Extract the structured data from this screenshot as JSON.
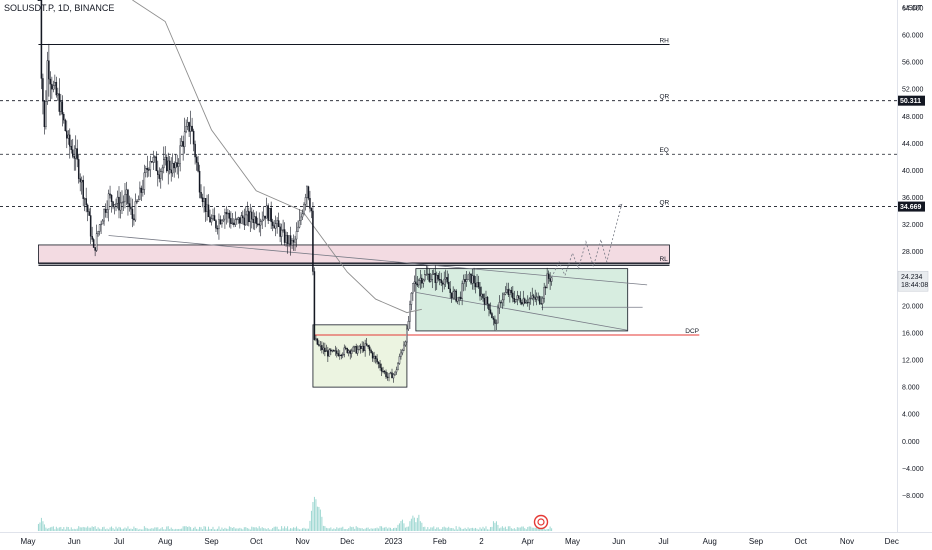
{
  "header": {
    "symbol_text": "SOLUSDT.P, 1D, BINANCE"
  },
  "colors": {
    "background": "#ffffff",
    "candle_up": "#131722",
    "candle_down": "#131722",
    "level_line": "#131722",
    "resistance_zone": "#f3dbe2",
    "resistance_zone_border": "#131722",
    "dcp_line": "#e53935",
    "accum_box_1": "#ecf4e1",
    "accum_box_2": "#d7ede0",
    "accum_box_border": "#43a047",
    "ma_line": "#8e8e8e",
    "volume": "#26a69a",
    "label_bg": "#131722"
  },
  "chart_data": {
    "type": "candlestick",
    "symbol": "SOLUSDT.P",
    "interval": "1D",
    "exchange": "BINANCE",
    "y_unit": "USDT",
    "ylim": [
      -9.5,
      68.0
    ],
    "y_ticks": [
      "64.000",
      "60.000",
      "56.000",
      "52.000",
      "48.000",
      "44.000",
      "40.000",
      "36.000",
      "32.000",
      "28.000",
      "24.000",
      "20.000",
      "16.000",
      "12.000",
      "8.000",
      "4.000",
      "0.000",
      "−4.000",
      "−8.000"
    ],
    "x_ticks": [
      "May",
      "Jun",
      "Jul",
      "Aug",
      "Sep",
      "Oct",
      "Nov",
      "Dec",
      "2023",
      "Feb",
      "2",
      "Apr",
      "May",
      "Jun",
      "Jul",
      "Aug",
      "Sep",
      "Oct",
      "Nov",
      "Dec"
    ],
    "x_tick_dates": [
      "2022-05-01",
      "2022-06-01",
      "2022-07-01",
      "2022-08-01",
      "2022-09-01",
      "2022-10-01",
      "2022-11-01",
      "2022-12-01",
      "2023-01-01",
      "2023-02-01",
      "2023-03-01",
      "2023-04-01",
      "2023-05-01",
      "2023-06-01",
      "2023-07-01",
      "2023-08-01",
      "2023-09-01",
      "2023-10-01",
      "2023-11-01",
      "2023-12-01"
    ],
    "x_range": [
      "2022-05-01",
      "2023-12-20"
    ],
    "price_path": [
      [
        "2022-05-08",
        82
      ],
      [
        "2022-05-10",
        55
      ],
      [
        "2022-05-12",
        46
      ],
      [
        "2022-05-14",
        56
      ],
      [
        "2022-05-18",
        52
      ],
      [
        "2022-05-22",
        50
      ],
      [
        "2022-05-28",
        44
      ],
      [
        "2022-06-02",
        42
      ],
      [
        "2022-06-06",
        38
      ],
      [
        "2022-06-10",
        34
      ],
      [
        "2022-06-14",
        28
      ],
      [
        "2022-06-18",
        32
      ],
      [
        "2022-06-24",
        36
      ],
      [
        "2022-07-01",
        35
      ],
      [
        "2022-07-06",
        36
      ],
      [
        "2022-07-10",
        33
      ],
      [
        "2022-07-16",
        37
      ],
      [
        "2022-07-22",
        42
      ],
      [
        "2022-07-28",
        40
      ],
      [
        "2022-08-02",
        41
      ],
      [
        "2022-08-08",
        40
      ],
      [
        "2022-08-12",
        44
      ],
      [
        "2022-08-18",
        47
      ],
      [
        "2022-08-24",
        38
      ],
      [
        "2022-08-30",
        33
      ],
      [
        "2022-09-04",
        32
      ],
      [
        "2022-09-10",
        34
      ],
      [
        "2022-09-16",
        32
      ],
      [
        "2022-09-22",
        33
      ],
      [
        "2022-09-28",
        33
      ],
      [
        "2022-10-04",
        33
      ],
      [
        "2022-10-08",
        34
      ],
      [
        "2022-10-14",
        32
      ],
      [
        "2022-10-20",
        30
      ],
      [
        "2022-10-26",
        29
      ],
      [
        "2022-10-30",
        32
      ],
      [
        "2022-11-04",
        38
      ],
      [
        "2022-11-07",
        34
      ],
      [
        "2022-11-09",
        15
      ],
      [
        "2022-11-12",
        14
      ],
      [
        "2022-11-18",
        13
      ],
      [
        "2022-11-24",
        13
      ],
      [
        "2022-12-01",
        13.5
      ],
      [
        "2022-12-08",
        13.5
      ],
      [
        "2022-12-14",
        14
      ],
      [
        "2022-12-20",
        12
      ],
      [
        "2022-12-28",
        9.5
      ],
      [
        "2023-01-02",
        10
      ],
      [
        "2023-01-06",
        13
      ],
      [
        "2023-01-10",
        16
      ],
      [
        "2023-01-14",
        23
      ],
      [
        "2023-01-18",
        24
      ],
      [
        "2023-01-24",
        24.5
      ],
      [
        "2023-01-30",
        24
      ],
      [
        "2023-02-04",
        24
      ],
      [
        "2023-02-08",
        22
      ],
      [
        "2023-02-14",
        21
      ],
      [
        "2023-02-18",
        24
      ],
      [
        "2023-02-23",
        24
      ],
      [
        "2023-02-28",
        22
      ],
      [
        "2023-03-06",
        20
      ],
      [
        "2023-03-10",
        17
      ],
      [
        "2023-03-14",
        21
      ],
      [
        "2023-03-18",
        22
      ],
      [
        "2023-03-24",
        21
      ],
      [
        "2023-03-30",
        21
      ],
      [
        "2023-04-05",
        21
      ],
      [
        "2023-04-10",
        21
      ],
      [
        "2023-04-14",
        24
      ],
      [
        "2023-04-17",
        24.2
      ]
    ],
    "candle_volatility": 1.6,
    "moving_average": [
      [
        "2022-07-10",
        84
      ],
      [
        "2022-08-01",
        62
      ],
      [
        "2022-09-01",
        46
      ],
      [
        "2022-10-01",
        37
      ],
      [
        "2022-11-01",
        34
      ],
      [
        "2022-12-01",
        25
      ],
      [
        "2022-12-20",
        21
      ],
      [
        "2023-01-10",
        19
      ],
      [
        "2023-01-20",
        19.5
      ]
    ],
    "levels": [
      {
        "name": "RH",
        "label": "RH",
        "value": 58.6,
        "style": "solid"
      },
      {
        "name": "QR-upper",
        "label": "QR",
        "value": 50.311,
        "style": "dashed"
      },
      {
        "name": "EQ",
        "label": "EQ",
        "value": 42.4,
        "style": "dashed"
      },
      {
        "name": "QR-lower",
        "label": "QR",
        "value": 34.669,
        "style": "dashed"
      },
      {
        "name": "RL",
        "label": "RL",
        "value": 26.3,
        "style": "solid"
      },
      {
        "name": "DCP",
        "label": "DCP",
        "value": 15.7,
        "style": "solid-red"
      }
    ],
    "level_tags": [
      {
        "text": "50.311",
        "value": 50.311
      },
      {
        "text": "34.669",
        "value": 34.669
      }
    ],
    "current_price": {
      "text": "24.234",
      "countdown": "18:44:08",
      "value": 24.234
    },
    "zones": [
      {
        "name": "resistance-zone",
        "y_from": 26.3,
        "y_to": 29.0,
        "x_from": "2022-05-08",
        "x_to": "2023-07-05"
      },
      {
        "name": "accumulation-box-1",
        "y_from": 8.0,
        "y_to": 17.2,
        "x_from": "2022-11-08",
        "x_to": "2023-01-10"
      },
      {
        "name": "accumulation-box-2",
        "y_from": 16.3,
        "y_to": 25.5,
        "x_from": "2023-01-16",
        "x_to": "2023-06-07"
      }
    ],
    "trendlines": [
      {
        "name": "upper-trend",
        "from": [
          "2022-06-24",
          30.4
        ],
        "to": [
          "2023-06-20",
          23.1
        ]
      },
      {
        "name": "lower-channel",
        "from": [
          "2023-01-16",
          22.0
        ],
        "to": [
          "2023-06-07",
          16.4
        ]
      },
      {
        "name": "mid-range",
        "from": [
          "2023-04-10",
          19.8
        ],
        "to": [
          "2023-06-17",
          19.8
        ]
      }
    ],
    "projection_path": [
      [
        "2023-04-17",
        24.2
      ],
      [
        "2023-04-22",
        26.5
      ],
      [
        "2023-04-26",
        24.5
      ],
      [
        "2023-05-01",
        27.8
      ],
      [
        "2023-05-05",
        25.5
      ],
      [
        "2023-05-10",
        29.5
      ],
      [
        "2023-05-15",
        25.8
      ],
      [
        "2023-05-20",
        29.8
      ],
      [
        "2023-05-24",
        26.5
      ],
      [
        "2023-05-28",
        30.0
      ],
      [
        "2023-06-03",
        35.0
      ]
    ],
    "volume_spikes": [
      [
        "2022-05-10",
        6.5
      ],
      [
        "2022-11-09",
        24
      ],
      [
        "2022-11-12",
        14
      ],
      [
        "2023-01-14",
        11
      ],
      [
        "2023-01-18",
        9
      ],
      [
        "2023-01-06",
        7
      ],
      [
        "2023-03-10",
        6
      ]
    ],
    "volume_base": 1.6
  }
}
